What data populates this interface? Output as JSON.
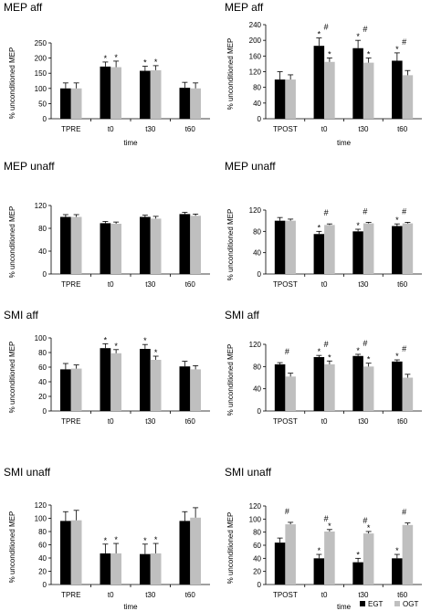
{
  "figure": {
    "legend": [
      {
        "name": "EGT",
        "color": "#000000"
      },
      {
        "name": "OGT",
        "color": "#bfbfbf"
      }
    ]
  },
  "chart_data": [
    {
      "type": "bar",
      "title": "MEP aff",
      "ylabel": "% unconditioned MEP",
      "xlabel": "time",
      "ylim": [
        0,
        250
      ],
      "yticks": [
        0,
        50,
        100,
        150,
        200,
        250
      ],
      "categories": [
        "TPRE",
        "t0",
        "t30",
        "t60"
      ],
      "series": [
        {
          "name": "EGT",
          "values": [
            100,
            172,
            158,
            102
          ],
          "errors": [
            18,
            15,
            15,
            18
          ],
          "marks": [
            "",
            "*",
            "*",
            ""
          ]
        },
        {
          "name": "OGT",
          "values": [
            100,
            170,
            160,
            100
          ],
          "errors": [
            18,
            20,
            15,
            18
          ],
          "marks": [
            "",
            "*",
            "*",
            ""
          ]
        }
      ]
    },
    {
      "type": "bar",
      "title": "MEP aff",
      "ylabel": "% unconditioned MEP",
      "xlabel": "time",
      "ylim": [
        0,
        240
      ],
      "yticks": [
        0,
        40,
        80,
        120,
        160,
        200,
        240
      ],
      "categories": [
        "TPOST",
        "t0",
        "t30",
        "t60"
      ],
      "series": [
        {
          "name": "EGT",
          "values": [
            100,
            186,
            180,
            148
          ],
          "errors": [
            20,
            20,
            20,
            20
          ],
          "marks": [
            "",
            "*",
            "*",
            "*"
          ]
        },
        {
          "name": "OGT",
          "values": [
            100,
            145,
            143,
            111
          ],
          "errors": [
            12,
            10,
            12,
            12
          ],
          "marks": [
            "",
            "*",
            "*",
            ""
          ]
        }
      ],
      "group_marks": [
        "",
        "#",
        "#",
        "#"
      ]
    },
    {
      "type": "bar",
      "title": "MEP unaff",
      "ylabel": "% unconditioned MEP",
      "xlabel": "",
      "ylim": [
        0,
        120
      ],
      "yticks": [
        0,
        40,
        80,
        120
      ],
      "categories": [
        "TPRE",
        "t0",
        "t30",
        "t60"
      ],
      "series": [
        {
          "name": "EGT",
          "values": [
            100,
            89,
            100,
            105
          ],
          "errors": [
            4,
            3,
            3,
            3
          ],
          "marks": [
            "",
            "",
            "",
            ""
          ]
        },
        {
          "name": "OGT",
          "values": [
            100,
            88,
            97,
            102
          ],
          "errors": [
            4,
            3,
            4,
            3
          ],
          "marks": [
            "",
            "",
            "",
            ""
          ]
        }
      ]
    },
    {
      "type": "bar",
      "title": "MEP unaff",
      "ylabel": "% unconditioned MEP",
      "xlabel": "",
      "ylim": [
        0,
        120
      ],
      "yticks": [
        0,
        40,
        80,
        120
      ],
      "categories": [
        "TPOST",
        "t0",
        "t30",
        "t60"
      ],
      "series": [
        {
          "name": "EGT",
          "values": [
            100,
            75,
            80,
            90
          ],
          "errors": [
            6,
            5,
            4,
            4
          ],
          "marks": [
            "",
            "*",
            "*",
            "*"
          ]
        },
        {
          "name": "OGT",
          "values": [
            100,
            92,
            95,
            95
          ],
          "errors": [
            3,
            2,
            2,
            2
          ],
          "marks": [
            "",
            "",
            "",
            ""
          ]
        }
      ],
      "group_marks": [
        "",
        "#",
        "#",
        "#"
      ]
    },
    {
      "type": "bar",
      "title": "SMI aff",
      "ylabel": "% unconditioned MEP",
      "xlabel": "",
      "ylim": [
        0,
        100
      ],
      "yticks": [
        0,
        20,
        40,
        60,
        80,
        100
      ],
      "categories": [
        "TPRE",
        "t0",
        "t30",
        "t60"
      ],
      "series": [
        {
          "name": "EGT",
          "values": [
            57,
            86,
            85,
            61
          ],
          "errors": [
            8,
            6,
            6,
            7
          ],
          "marks": [
            "",
            "*",
            "*",
            ""
          ]
        },
        {
          "name": "OGT",
          "values": [
            58,
            79,
            70,
            57
          ],
          "errors": [
            5,
            5,
            5,
            5
          ],
          "marks": [
            "",
            "*",
            "*",
            ""
          ]
        }
      ]
    },
    {
      "type": "bar",
      "title": "SMI aff",
      "ylabel": "% unconditioned MEP",
      "xlabel": "",
      "ylim": [
        0,
        120
      ],
      "yticks": [
        0,
        40,
        80,
        120
      ],
      "categories": [
        "TPOST",
        "t0",
        "t30",
        "t60"
      ],
      "series": [
        {
          "name": "EGT",
          "values": [
            84,
            97,
            99,
            89
          ],
          "errors": [
            3,
            3,
            3,
            3
          ],
          "marks": [
            "",
            "*",
            "*",
            "*"
          ]
        },
        {
          "name": "OGT",
          "values": [
            62,
            84,
            80,
            60
          ],
          "errors": [
            6,
            6,
            6,
            6
          ],
          "marks": [
            "",
            "*",
            "*",
            ""
          ]
        }
      ],
      "group_marks": [
        "#",
        "#",
        "#",
        "#"
      ]
    },
    {
      "type": "bar",
      "title": "SMI unaff",
      "ylabel": "% unconditioned MEP",
      "xlabel": "time",
      "ylim": [
        0,
        120
      ],
      "yticks": [
        0,
        20,
        40,
        60,
        80,
        100,
        120
      ],
      "categories": [
        "TPRE",
        "t0",
        "t30",
        "t60"
      ],
      "series": [
        {
          "name": "EGT",
          "values": [
            96,
            47,
            46,
            96
          ],
          "errors": [
            14,
            14,
            15,
            14
          ],
          "marks": [
            "",
            "*",
            "*",
            ""
          ]
        },
        {
          "name": "OGT",
          "values": [
            97,
            47,
            47,
            101
          ],
          "errors": [
            15,
            15,
            15,
            15
          ],
          "marks": [
            "",
            "*",
            "*",
            ""
          ]
        }
      ]
    },
    {
      "type": "bar",
      "title": "SMI unaff",
      "ylabel": "% unconditioned MEP",
      "xlabel": "time",
      "ylim": [
        0,
        120
      ],
      "yticks": [
        0,
        20,
        40,
        60,
        80,
        100,
        120
      ],
      "categories": [
        "TPOST",
        "t0",
        "t30",
        "t60"
      ],
      "series": [
        {
          "name": "EGT",
          "values": [
            64,
            40,
            34,
            40
          ],
          "errors": [
            7,
            6,
            6,
            6
          ],
          "marks": [
            "",
            "*",
            "*",
            "*"
          ]
        },
        {
          "name": "OGT",
          "values": [
            92,
            81,
            78,
            91
          ],
          "errors": [
            3,
            3,
            3,
            3
          ],
          "marks": [
            "",
            "*",
            "*",
            ""
          ]
        }
      ],
      "group_marks": [
        "#",
        "#",
        "#",
        "#"
      ]
    }
  ]
}
